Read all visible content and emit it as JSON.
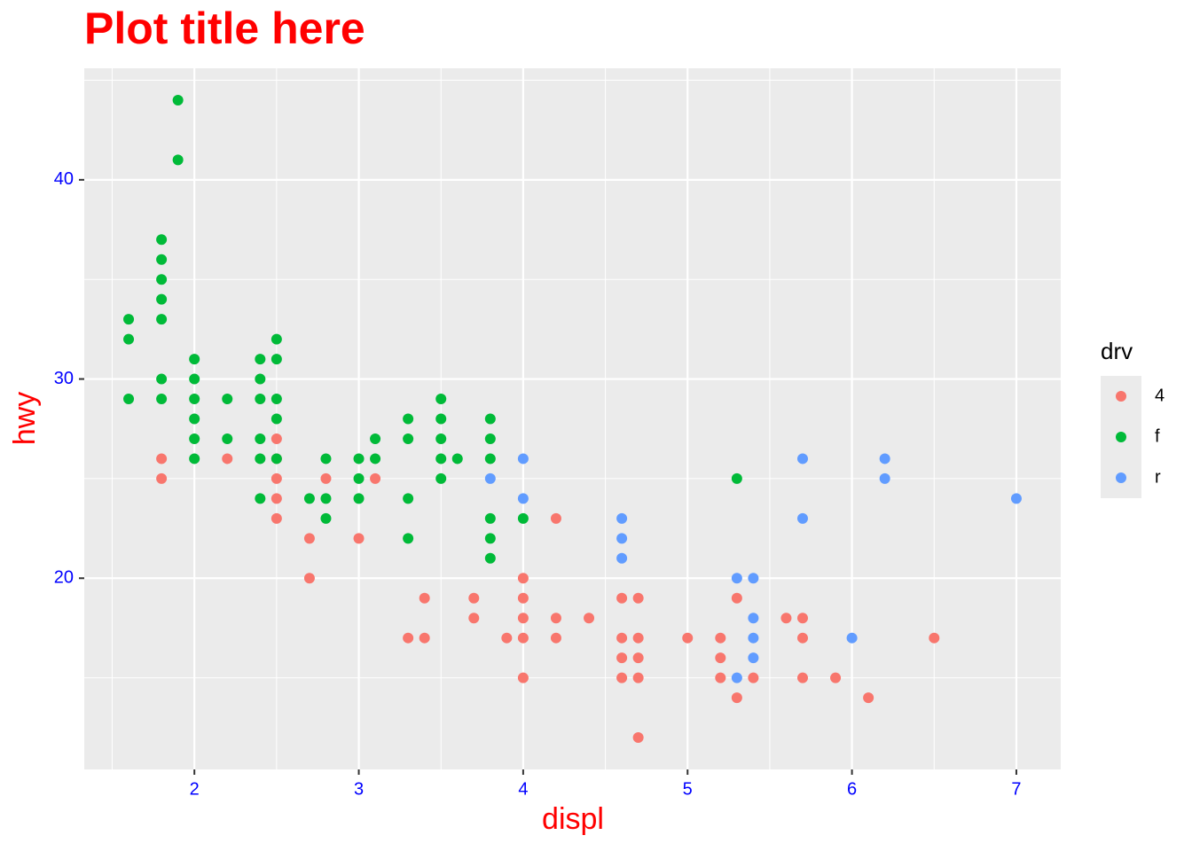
{
  "chart_data": {
    "type": "scatter",
    "title": "Plot title here",
    "x_label": "displ",
    "y_label": "hwy",
    "legend_title": "drv",
    "xlim": [
      1.33,
      7.27
    ],
    "ylim": [
      10.4,
      45.6
    ],
    "xticks": [
      2,
      3,
      4,
      5,
      6,
      7
    ],
    "yticks": [
      20,
      30,
      40
    ],
    "grid": true,
    "legend_position": "right",
    "series": [
      {
        "name": "4",
        "color": "#F8766D",
        "x": [
          1.8,
          1.8,
          2.2,
          2.5,
          2.5,
          2.5,
          2.5,
          2.5,
          2.7,
          2.7,
          2.8,
          3.0,
          3.1,
          3.3,
          3.4,
          3.4,
          3.7,
          3.7,
          3.9,
          4.0,
          4.0,
          4.0,
          4.0,
          4.0,
          4.2,
          4.2,
          4.2,
          4.4,
          4.6,
          4.6,
          4.6,
          4.6,
          4.7,
          4.7,
          4.7,
          4.7,
          4.7,
          5.0,
          5.2,
          5.2,
          5.2,
          5.3,
          5.3,
          5.4,
          5.6,
          5.7,
          5.7,
          5.7,
          5.9,
          6.1,
          6.5
        ],
        "values": [
          26,
          25,
          26,
          27,
          26,
          25,
          24,
          23,
          22,
          20,
          25,
          22,
          25,
          17,
          19,
          17,
          19,
          18,
          17,
          20,
          19,
          18,
          17,
          15,
          23,
          18,
          17,
          18,
          19,
          17,
          16,
          15,
          19,
          17,
          16,
          15,
          12,
          17,
          17,
          16,
          15,
          19,
          14,
          15,
          18,
          18,
          17,
          15,
          15,
          14,
          17
        ]
      },
      {
        "name": "f",
        "color": "#00BA38",
        "x": [
          1.6,
          1.6,
          1.6,
          1.8,
          1.8,
          1.8,
          1.8,
          1.8,
          1.8,
          1.8,
          1.9,
          1.9,
          2.0,
          2.0,
          2.0,
          2.0,
          2.0,
          2.0,
          2.2,
          2.2,
          2.4,
          2.4,
          2.4,
          2.4,
          2.4,
          2.4,
          2.5,
          2.5,
          2.5,
          2.5,
          2.5,
          2.7,
          2.8,
          2.8,
          2.8,
          3.0,
          3.0,
          3.0,
          3.1,
          3.1,
          3.3,
          3.3,
          3.3,
          3.3,
          3.5,
          3.5,
          3.5,
          3.5,
          3.5,
          3.6,
          3.8,
          3.8,
          3.8,
          3.8,
          3.8,
          3.8,
          4.0,
          5.3
        ],
        "values": [
          33,
          32,
          29,
          37,
          36,
          35,
          34,
          33,
          30,
          29,
          44,
          41,
          31,
          30,
          29,
          28,
          27,
          26,
          29,
          27,
          31,
          30,
          29,
          27,
          26,
          24,
          32,
          31,
          29,
          28,
          26,
          24,
          26,
          24,
          23,
          26,
          25,
          24,
          27,
          26,
          28,
          27,
          24,
          22,
          29,
          28,
          27,
          26,
          25,
          26,
          28,
          27,
          26,
          23,
          22,
          21,
          23,
          25
        ]
      },
      {
        "name": "r",
        "color": "#619CFF",
        "x": [
          3.8,
          4.0,
          4.0,
          4.6,
          4.6,
          4.6,
          5.3,
          5.3,
          5.4,
          5.4,
          5.4,
          5.4,
          5.7,
          5.7,
          6.0,
          6.2,
          6.2,
          7.0
        ],
        "values": [
          25,
          26,
          24,
          23,
          22,
          21,
          20,
          15,
          20,
          18,
          17,
          16,
          26,
          23,
          17,
          26,
          25,
          24
        ]
      }
    ]
  }
}
